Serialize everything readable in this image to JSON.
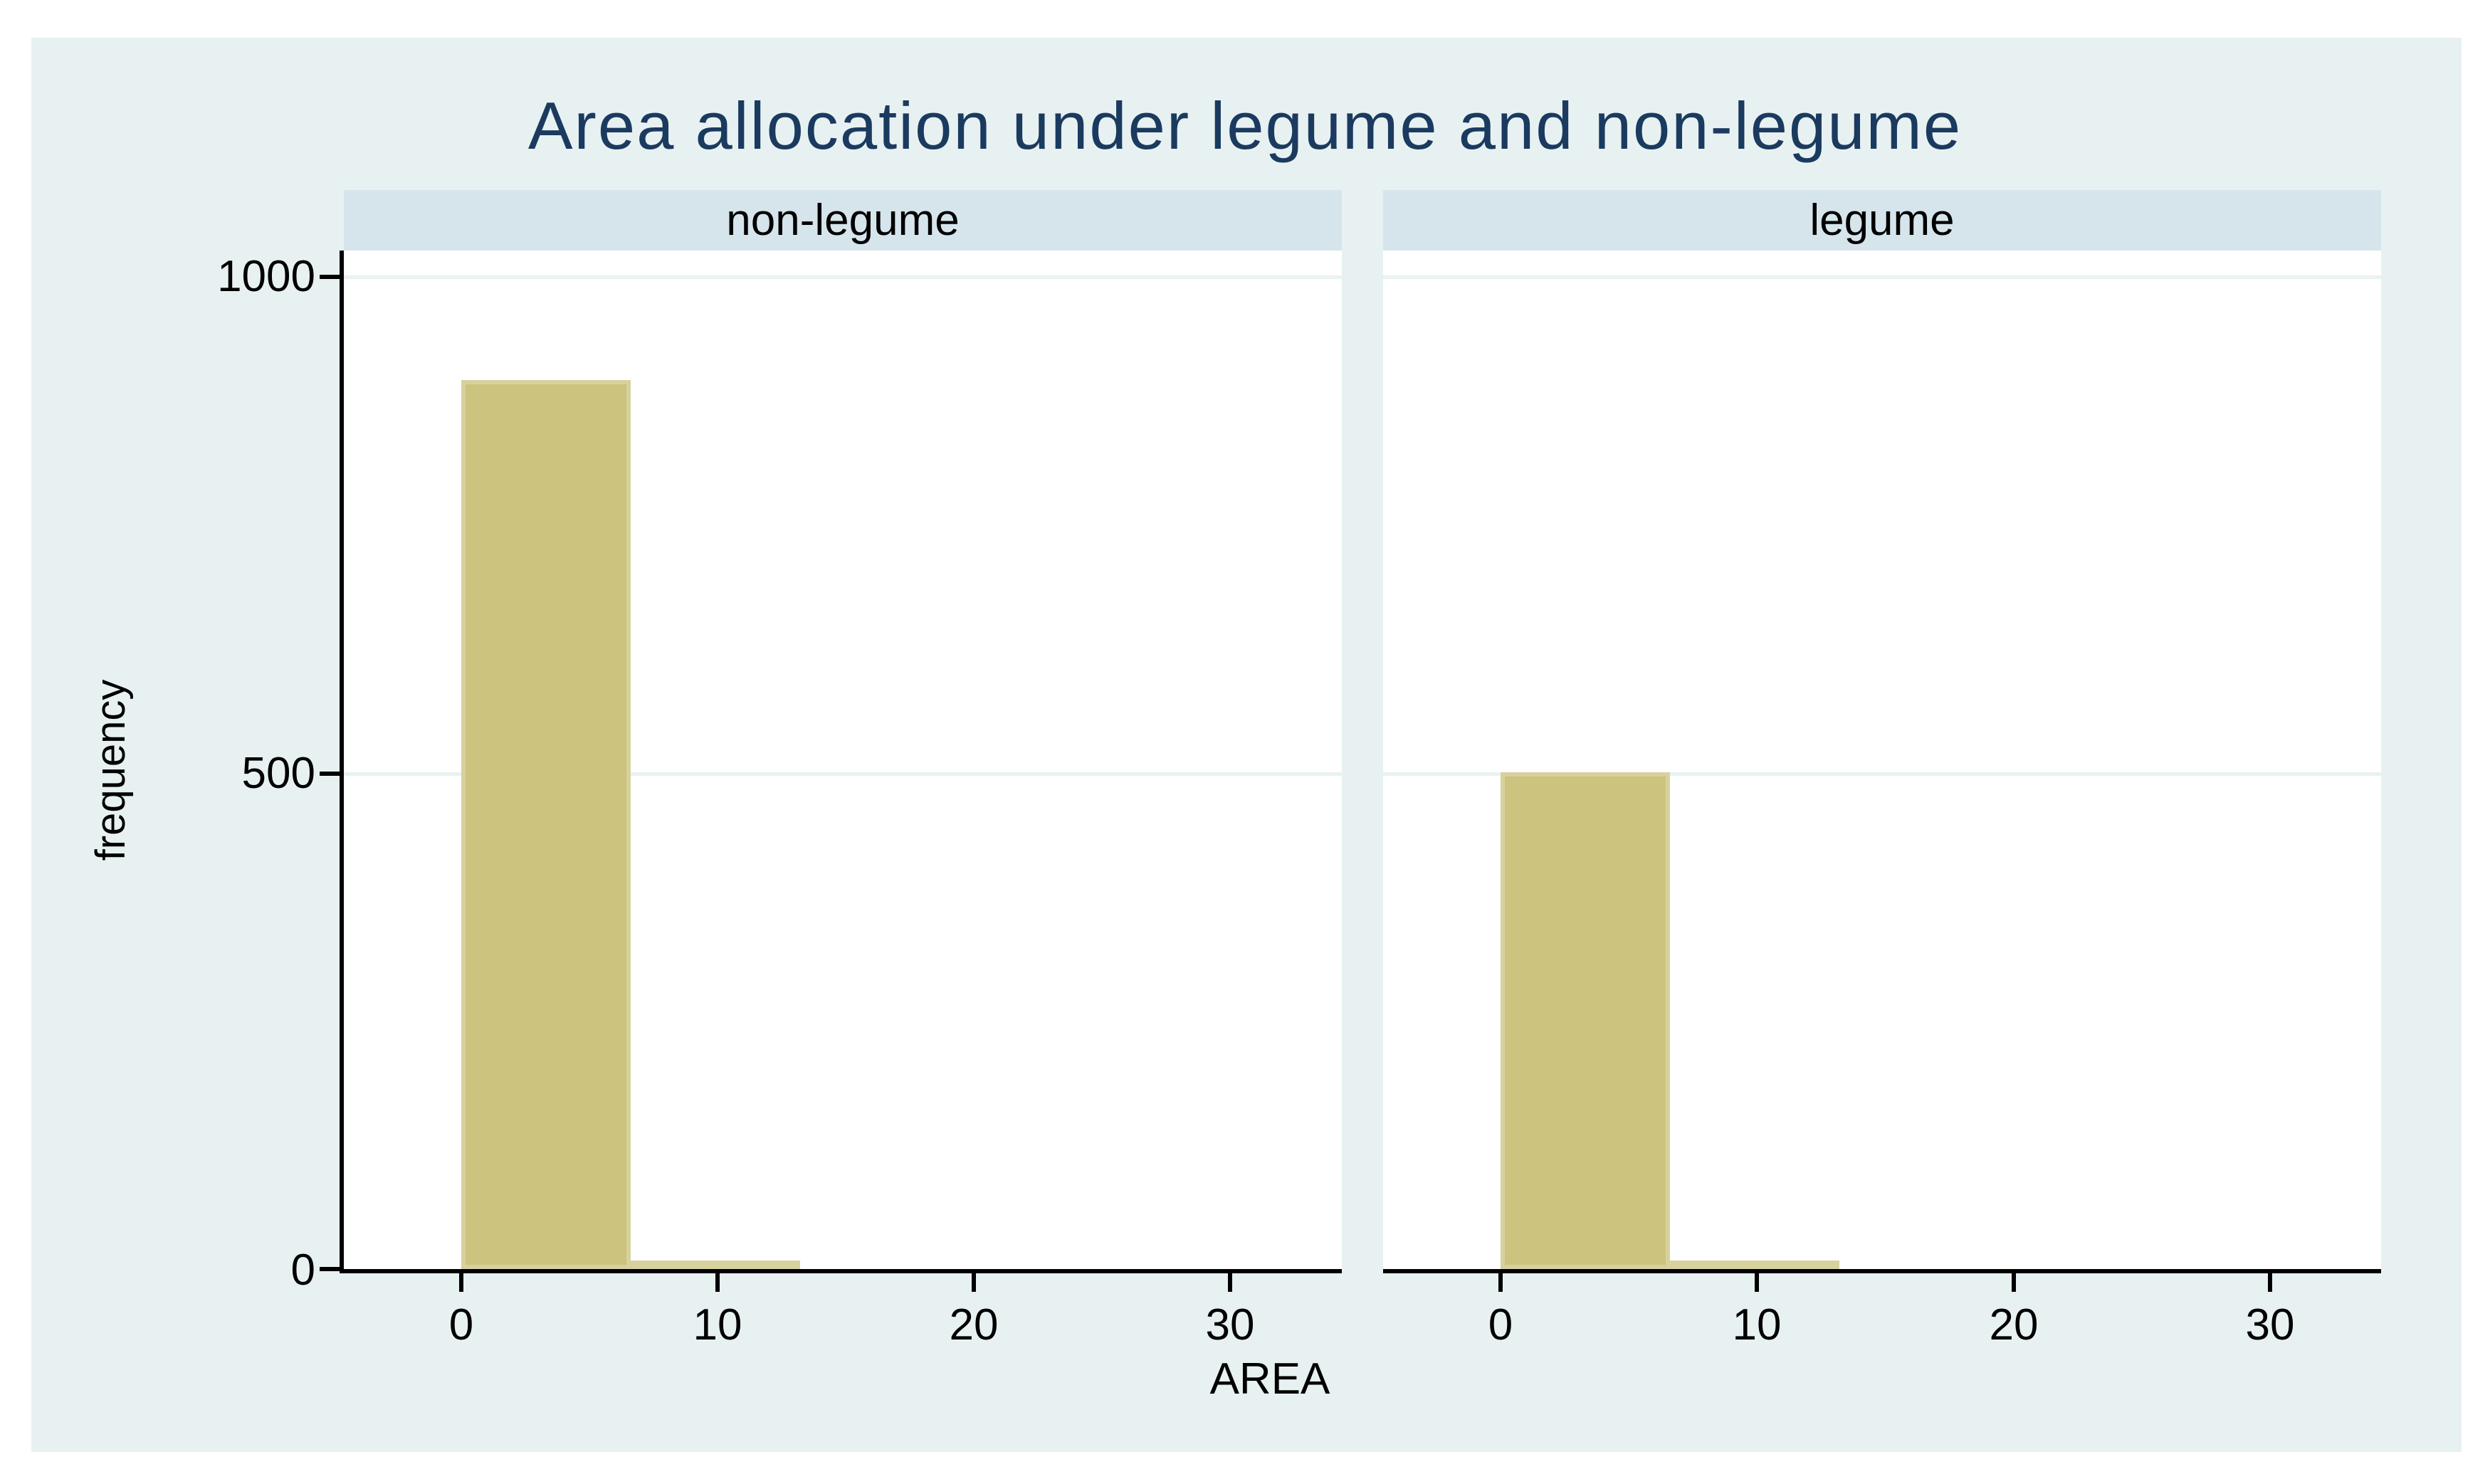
{
  "title": "Area allocation under legume and non-legume",
  "y_axis": {
    "label": "frequency",
    "ticks": [
      "1000",
      "500",
      "0"
    ]
  },
  "x_axis": {
    "label": "AREA",
    "ticks": [
      "0",
      "10",
      "20",
      "30"
    ]
  },
  "panels": [
    {
      "label": "non-legume"
    },
    {
      "label": "legume"
    }
  ],
  "colors": {
    "canvas_background": "#e8f1f2",
    "panel_header_background": "#d6e4ec",
    "plot_background": "#ffffff",
    "gridline": "#e9f3f1",
    "axis": "#000000",
    "bar_fill": "#cbc37e",
    "bar_border": "#d7d19d",
    "title_text": "#1b3a5f",
    "label_text": "#000000"
  },
  "chart_data": {
    "type": "bar",
    "subtype": "histogram-by-panel",
    "title": "Area allocation under legume and non-legume",
    "xlabel": "AREA",
    "ylabel": "frequency",
    "xlim": [
      -4.5,
      34.5
    ],
    "ylim": [
      0,
      1000
    ],
    "xticks": [
      0,
      10,
      20,
      30
    ],
    "yticks": [
      0,
      500,
      1000
    ],
    "grid": "horizontal",
    "legend": "none",
    "panels": [
      {
        "title": "non-legume",
        "bins": [
          {
            "x_start": 0,
            "x_end": 6.6,
            "frequency": 895
          },
          {
            "x_start": 6.6,
            "x_end": 13.2,
            "frequency": 7
          }
        ]
      },
      {
        "title": "legume",
        "bins": [
          {
            "x_start": 0,
            "x_end": 6.6,
            "frequency": 500
          },
          {
            "x_start": 6.6,
            "x_end": 13.2,
            "frequency": 7
          }
        ]
      }
    ]
  }
}
